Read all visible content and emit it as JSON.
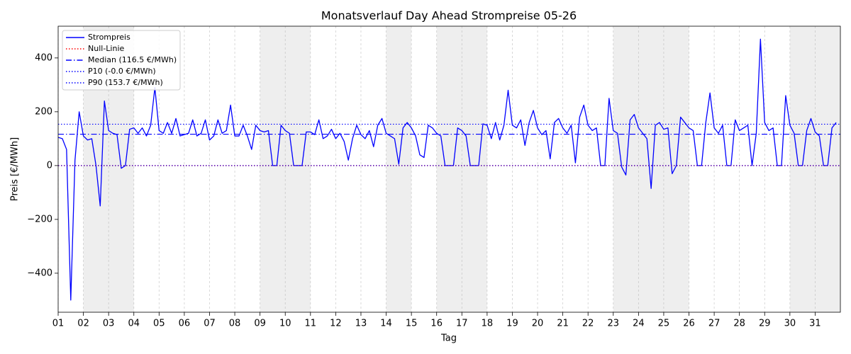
{
  "chart_data": {
    "type": "line",
    "title": "Monatsverlauf Day Ahead Strompreise 05-26",
    "x_label": "Tag",
    "y_label": "Preis [€/MWh]",
    "xlim": [
      0,
      31
    ],
    "ylim": [
      -545,
      518
    ],
    "xticks": [
      {
        "value": 0,
        "label": "01"
      },
      {
        "value": 1,
        "label": "02"
      },
      {
        "value": 2,
        "label": "03"
      },
      {
        "value": 3,
        "label": "04"
      },
      {
        "value": 4,
        "label": "05"
      },
      {
        "value": 5,
        "label": "06"
      },
      {
        "value": 6,
        "label": "07"
      },
      {
        "value": 7,
        "label": "08"
      },
      {
        "value": 8,
        "label": "09"
      },
      {
        "value": 9,
        "label": "10"
      },
      {
        "value": 10,
        "label": "11"
      },
      {
        "value": 11,
        "label": "12"
      },
      {
        "value": 12,
        "label": "13"
      },
      {
        "value": 13,
        "label": "14"
      },
      {
        "value": 14,
        "label": "15"
      },
      {
        "value": 15,
        "label": "16"
      },
      {
        "value": 16,
        "label": "17"
      },
      {
        "value": 17,
        "label": "18"
      },
      {
        "value": 18,
        "label": "19"
      },
      {
        "value": 19,
        "label": "20"
      },
      {
        "value": 20,
        "label": "21"
      },
      {
        "value": 21,
        "label": "22"
      },
      {
        "value": 22,
        "label": "23"
      },
      {
        "value": 23,
        "label": "24"
      },
      {
        "value": 24,
        "label": "25"
      },
      {
        "value": 25,
        "label": "26"
      },
      {
        "value": 26,
        "label": "27"
      },
      {
        "value": 27,
        "label": "28"
      },
      {
        "value": 28,
        "label": "29"
      },
      {
        "value": 29,
        "label": "30"
      },
      {
        "value": 30,
        "label": "31"
      }
    ],
    "yticks": [
      {
        "value": -400,
        "label": "−400"
      },
      {
        "value": -200,
        "label": "−200"
      },
      0,
      200,
      400
    ],
    "x_grid": true,
    "legend": "upper left",
    "shaded_ranges": [
      [
        1,
        3
      ],
      [
        8,
        10
      ],
      [
        13,
        14
      ],
      [
        15,
        17
      ],
      [
        22,
        25
      ],
      [
        29,
        31
      ]
    ],
    "x": [
      0,
      0.167,
      0.333,
      0.5,
      0.667,
      0.833,
      1,
      1.167,
      1.333,
      1.5,
      1.667,
      1.833,
      2,
      2.167,
      2.333,
      2.5,
      2.667,
      2.833,
      3,
      3.167,
      3.333,
      3.5,
      3.667,
      3.833,
      4,
      4.167,
      4.333,
      4.5,
      4.667,
      4.833,
      5,
      5.167,
      5.333,
      5.5,
      5.667,
      5.833,
      6,
      6.167,
      6.333,
      6.5,
      6.667,
      6.833,
      7,
      7.167,
      7.333,
      7.5,
      7.667,
      7.833,
      8,
      8.167,
      8.333,
      8.5,
      8.667,
      8.833,
      9,
      9.167,
      9.333,
      9.5,
      9.667,
      9.833,
      10,
      10.167,
      10.333,
      10.5,
      10.667,
      10.833,
      11,
      11.167,
      11.333,
      11.5,
      11.667,
      11.833,
      12,
      12.167,
      12.333,
      12.5,
      12.667,
      12.833,
      13,
      13.167,
      13.333,
      13.5,
      13.667,
      13.833,
      14,
      14.167,
      14.333,
      14.5,
      14.667,
      14.833,
      15,
      15.167,
      15.333,
      15.5,
      15.667,
      15.833,
      16,
      16.167,
      16.333,
      16.5,
      16.667,
      16.833,
      17,
      17.167,
      17.333,
      17.5,
      17.667,
      17.833,
      18,
      18.167,
      18.333,
      18.5,
      18.667,
      18.833,
      19,
      19.167,
      19.333,
      19.5,
      19.667,
      19.833,
      20,
      20.167,
      20.333,
      20.5,
      20.667,
      20.833,
      21,
      21.167,
      21.333,
      21.5,
      21.667,
      21.833,
      22,
      22.167,
      22.333,
      22.5,
      22.667,
      22.833,
      23,
      23.167,
      23.333,
      23.5,
      23.667,
      23.833,
      24,
      24.167,
      24.333,
      24.5,
      24.667,
      24.833,
      25,
      25.167,
      25.333,
      25.5,
      25.667,
      25.833,
      26,
      26.167,
      26.333,
      26.5,
      26.667,
      26.833,
      27,
      27.167,
      27.333,
      27.5,
      27.667,
      27.833,
      28,
      28.167,
      28.333,
      28.5,
      28.667,
      28.833,
      29,
      29.167,
      29.333,
      29.5,
      29.667,
      29.833,
      30,
      30.167,
      30.333,
      30.5,
      30.667,
      30.833
    ],
    "series": [
      {
        "name": "Strompreis",
        "color": "#0000ff",
        "values": [
          105,
          100,
          60,
          -500,
          20,
          200,
          110,
          95,
          100,
          0,
          -150,
          240,
          130,
          120,
          115,
          -10,
          0,
          135,
          140,
          120,
          140,
          110,
          150,
          290,
          130,
          120,
          160,
          120,
          175,
          110,
          115,
          120,
          170,
          110,
          120,
          170,
          95,
          110,
          170,
          120,
          130,
          225,
          110,
          110,
          150,
          110,
          60,
          150,
          130,
          125,
          130,
          0,
          0,
          150,
          130,
          120,
          0,
          0,
          0,
          125,
          125,
          115,
          170,
          100,
          110,
          135,
          100,
          120,
          90,
          20,
          100,
          150,
          115,
          100,
          130,
          70,
          150,
          175,
          120,
          110,
          100,
          5,
          140,
          160,
          140,
          110,
          40,
          30,
          150,
          140,
          120,
          110,
          0,
          0,
          0,
          140,
          130,
          110,
          0,
          0,
          0,
          155,
          150,
          100,
          160,
          95,
          150,
          280,
          150,
          140,
          170,
          75,
          160,
          205,
          140,
          115,
          130,
          25,
          160,
          175,
          140,
          120,
          150,
          10,
          180,
          225,
          150,
          130,
          140,
          0,
          0,
          250,
          130,
          120,
          -5,
          -35,
          170,
          190,
          140,
          120,
          100,
          -85,
          150,
          160,
          135,
          140,
          -30,
          0,
          180,
          160,
          140,
          130,
          0,
          0,
          160,
          270,
          140,
          120,
          150,
          0,
          0,
          170,
          130,
          140,
          150,
          0,
          120,
          470,
          160,
          130,
          140,
          0,
          0,
          260,
          150,
          120,
          0,
          0,
          130,
          175,
          125,
          110,
          0,
          0,
          140,
          160
        ]
      }
    ],
    "reference_lines": [
      {
        "name": "Null-Linie",
        "value": 0,
        "color": "#ff0000",
        "style": "dotted"
      },
      {
        "name": "Median (116.5 €/MWh)",
        "value": 116.5,
        "color": "#0000ff",
        "style": "dashdot"
      },
      {
        "name": "P10 (-0.0 €/MWh)",
        "value": 0,
        "color": "#0000ff",
        "style": "dotted"
      },
      {
        "name": "P90 (153.7 €/MWh)",
        "value": 153.7,
        "color": "#0000ff",
        "style": "dotted"
      }
    ]
  }
}
